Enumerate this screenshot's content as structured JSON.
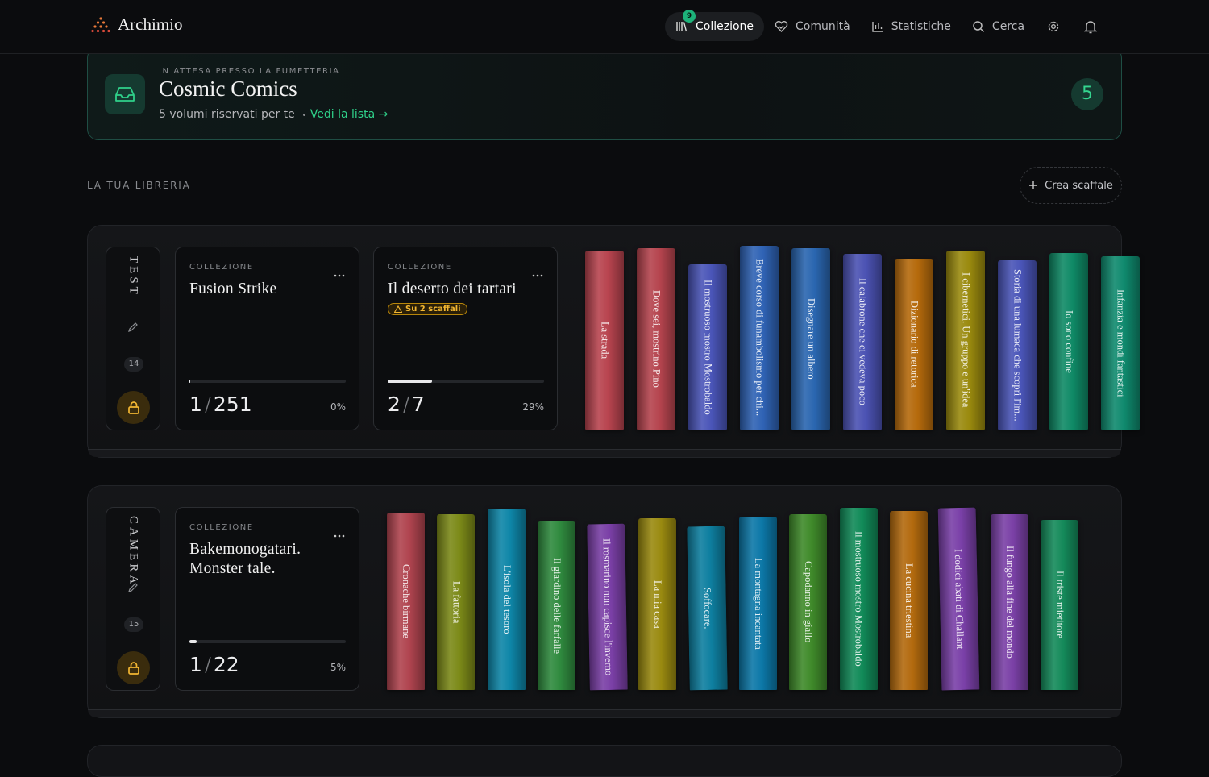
{
  "nav": {
    "brand": "Archimio",
    "badge": "9",
    "items": [
      "Collezione",
      "Comunità",
      "Statistiche",
      "Cerca"
    ]
  },
  "pickup": {
    "kicker": "IN ATTESA PRESSO LA FUMETTERIA",
    "title": "Cosmic Comics",
    "text": "5 volumi riservati per te",
    "link": "Vedi la lista →",
    "count": "5"
  },
  "library": {
    "label": "LA TUA LIBRERIA",
    "button": "Crea scaffale",
    "shelves": [
      {
        "name": "TEST",
        "count": "14",
        "collections": [
          {
            "kicker": "COLLEZIONE",
            "title": "Fusion Strike",
            "owned": 1,
            "total": 251,
            "percent": "0%"
          },
          {
            "kicker": "COLLEZIONE",
            "title": "Il deserto dei tartari",
            "warning": "Su 2 scaffali",
            "owned": 2,
            "total": 7,
            "percent": "29%"
          }
        ],
        "books": [
          {
            "title": "La strada",
            "color": "#b8444f"
          },
          {
            "title": "Dove sei, mostrino Pino",
            "color": "#b5444e"
          },
          {
            "title": "Il mostruoso mostro Mostrobaldo",
            "color": "#4a55b8"
          },
          {
            "title": "Breve corso di funambolismo per chi...",
            "color": "#2f63b5"
          },
          {
            "title": "Disegnare un albero",
            "color": "#2a66b0"
          },
          {
            "title": "Il calabrone che ci vedeva poco",
            "color": "#4b52b3"
          },
          {
            "title": "Dizionario di retorica",
            "color": "#b56a0c"
          },
          {
            "title": "I cibernetici. Un gruppo e un'idea",
            "color": "#9a8a0e"
          },
          {
            "title": "Storia di una lumaca che scoprì l'im...",
            "color": "#4a55b8"
          },
          {
            "title": "Io sono confine",
            "color": "#0f8a66"
          },
          {
            "title": "Infanzia e mondi fantastici",
            "color": "#0f8a6e"
          }
        ]
      },
      {
        "name": "CAMERA",
        "count": "15",
        "collections": [
          {
            "kicker": "COLLEZIONE",
            "title": "Bakemonogatari. Monster tale.",
            "owned": 1,
            "total": 22,
            "percent": "5%"
          }
        ],
        "books": [
          {
            "title": "Cronache birmane",
            "color": "#b0444f"
          },
          {
            "title": "La fattoria",
            "color": "#7c8a18"
          },
          {
            "title": "L'isola del tesoro",
            "color": "#0e86a8"
          },
          {
            "title": "Il giardino delle farfalle",
            "color": "#2f8a3e"
          },
          {
            "title": "Il rosmarino non capisce l'inverno",
            "color": "#7a3fa6"
          },
          {
            "title": "La mia casa",
            "color": "#9a8a10"
          },
          {
            "title": "Soffocare.",
            "color": "#0e7fa0"
          },
          {
            "title": "La montagna incantata",
            "color": "#0c78a8"
          },
          {
            "title": "Capodanno in giallo",
            "color": "#3f8a2a"
          },
          {
            "title": "Il mostruoso mostro Mostrobaldo",
            "color": "#118a58"
          },
          {
            "title": "La cucina triestina",
            "color": "#b36a0e"
          },
          {
            "title": "I dodici abati di Challant",
            "color": "#7a40a8"
          },
          {
            "title": "Il fungo alla fine del mondo",
            "color": "#7a40a6"
          },
          {
            "title": "Il triste mietitore",
            "color": "#148a5a"
          }
        ]
      }
    ]
  }
}
